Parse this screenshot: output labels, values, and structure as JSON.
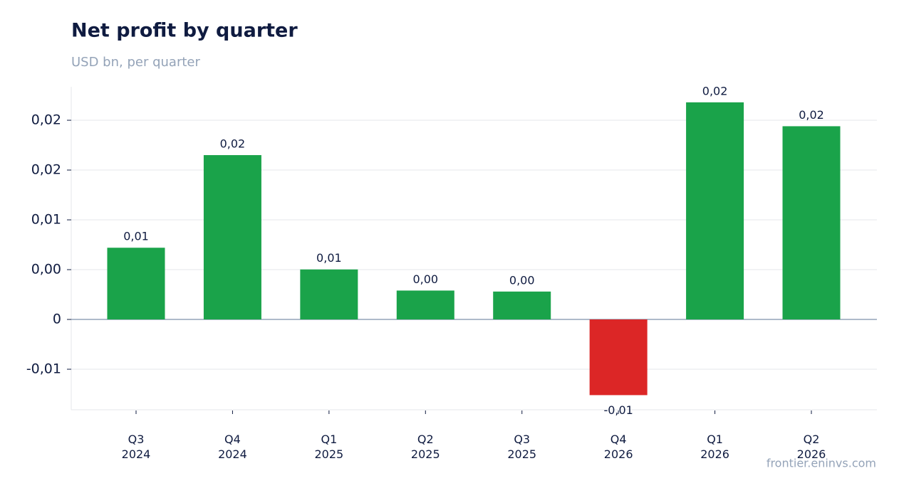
{
  "chart_data": {
    "type": "bar",
    "title": "Net profit by quarter",
    "subtitle": "USD bn, per quarter",
    "source": "frontier.eninvs.com",
    "categories": [
      "Q3 2024",
      "Q4 2024",
      "Q1 2025",
      "Q2 2025",
      "Q3 2025",
      "Q4 2026",
      "Q1 2026",
      "Q2 2026"
    ],
    "values": [
      0.0072,
      0.0165,
      0.00502,
      0.0029,
      0.0028,
      -0.0076,
      0.0218,
      0.0194
    ],
    "value_labels": [
      "0,01",
      "0,02",
      "0,01",
      "0,00",
      "0,00",
      "-0,01",
      "0,02",
      "0,02"
    ],
    "colors": [
      "#1aa34a",
      "#1aa34a",
      "#1aa34a",
      "#1aa34a",
      "#1aa34a",
      "#dc2626",
      "#1aa34a",
      "#1aa34a"
    ],
    "ylim": [
      -0.00907,
      0.02336
    ],
    "yticks": [
      {
        "value": -0.005,
        "label": "-0,01"
      },
      0,
      {
        "value": 0.005,
        "label": "0,00"
      },
      {
        "value": 0.01,
        "label": "0,01"
      },
      {
        "value": 0.015,
        "label": "0,02"
      },
      {
        "value": 0.02,
        "label": "0,02"
      }
    ],
    "grid": true
  }
}
